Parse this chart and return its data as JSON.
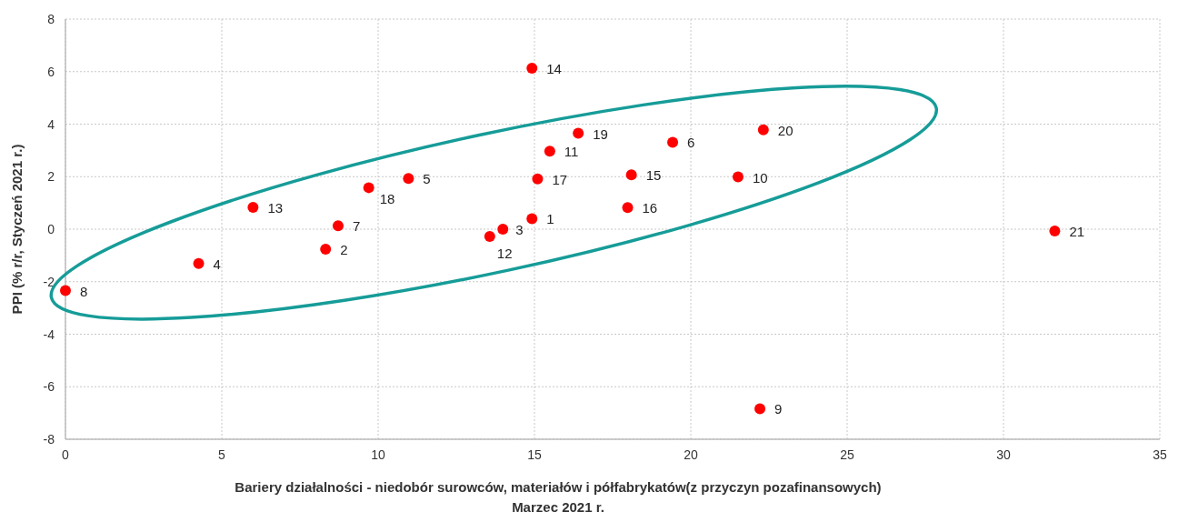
{
  "chart_data": {
    "type": "scatter",
    "xlabel": "Bariery działalności - niedobór surowców, materiałów i półfabrykatów(z przyczyn pozafinansowych)\nMarzec 2021 r.",
    "ylabel": "PPI (% r/r, Styczeń 2021 r.)",
    "x": [
      14.92,
      8.32,
      13.99,
      4.26,
      10.97,
      19.42,
      8.72,
      0,
      22.21,
      21.51,
      15.49,
      13.57,
      6.0,
      14.92,
      18.1,
      17.98,
      15.1,
      9.7,
      16.4,
      22.32,
      31.64
    ],
    "series": [
      {
        "color": "#ff0000",
        "values": [
          0.4,
          -0.76,
          0.0,
          -1.31,
          1.93,
          3.31,
          0.13,
          -2.34,
          -6.84,
          1.99,
          2.97,
          -0.28,
          0.83,
          6.13,
          2.07,
          0.82,
          1.91,
          1.58,
          3.65,
          3.78,
          -0.07
        ]
      }
    ],
    "annotations": [
      {
        "text": "1",
        "x": 14.92,
        "y": 0.4
      },
      {
        "text": "2",
        "x": 8.32,
        "y": -0.76
      },
      {
        "text": "3",
        "x": 13.99,
        "y": 0.0
      },
      {
        "text": "4",
        "x": 4.26,
        "y": -1.31
      },
      {
        "text": "5",
        "x": 10.97,
        "y": 1.93
      },
      {
        "text": "6",
        "x": 19.42,
        "y": 3.31
      },
      {
        "text": "7",
        "x": 8.72,
        "y": 0.13
      },
      {
        "text": "8",
        "x": 0,
        "y": -2.34
      },
      {
        "text": "9",
        "x": 22.21,
        "y": -6.84
      },
      {
        "text": "10",
        "x": 21.51,
        "y": 1.99
      },
      {
        "text": "11",
        "x": 15.49,
        "y": 2.97
      },
      {
        "text": "12",
        "x": 13.57,
        "y": -0.28
      },
      {
        "text": "13",
        "x": 6.0,
        "y": 0.83
      },
      {
        "text": "14",
        "x": 14.92,
        "y": 6.13
      },
      {
        "text": "15",
        "x": 18.1,
        "y": 2.07
      },
      {
        "text": "16",
        "x": 17.98,
        "y": 0.82
      },
      {
        "text": "17",
        "x": 15.1,
        "y": 1.91
      },
      {
        "text": "18",
        "x": 9.7,
        "y": 1.58
      },
      {
        "text": "19",
        "x": 16.4,
        "y": 3.65
      },
      {
        "text": "20",
        "x": 22.32,
        "y": 3.78
      },
      {
        "text": "21",
        "x": 31.64,
        "y": -0.07
      }
    ],
    "xlim": [
      0,
      35
    ],
    "xticks": [
      0,
      5,
      10,
      15,
      20,
      25,
      30,
      35
    ],
    "ylim": [
      -8,
      8
    ],
    "yticks": [
      -8,
      -6,
      -4,
      -2,
      0,
      2,
      4,
      6,
      8
    ],
    "grid": true,
    "marker": "circle"
  }
}
